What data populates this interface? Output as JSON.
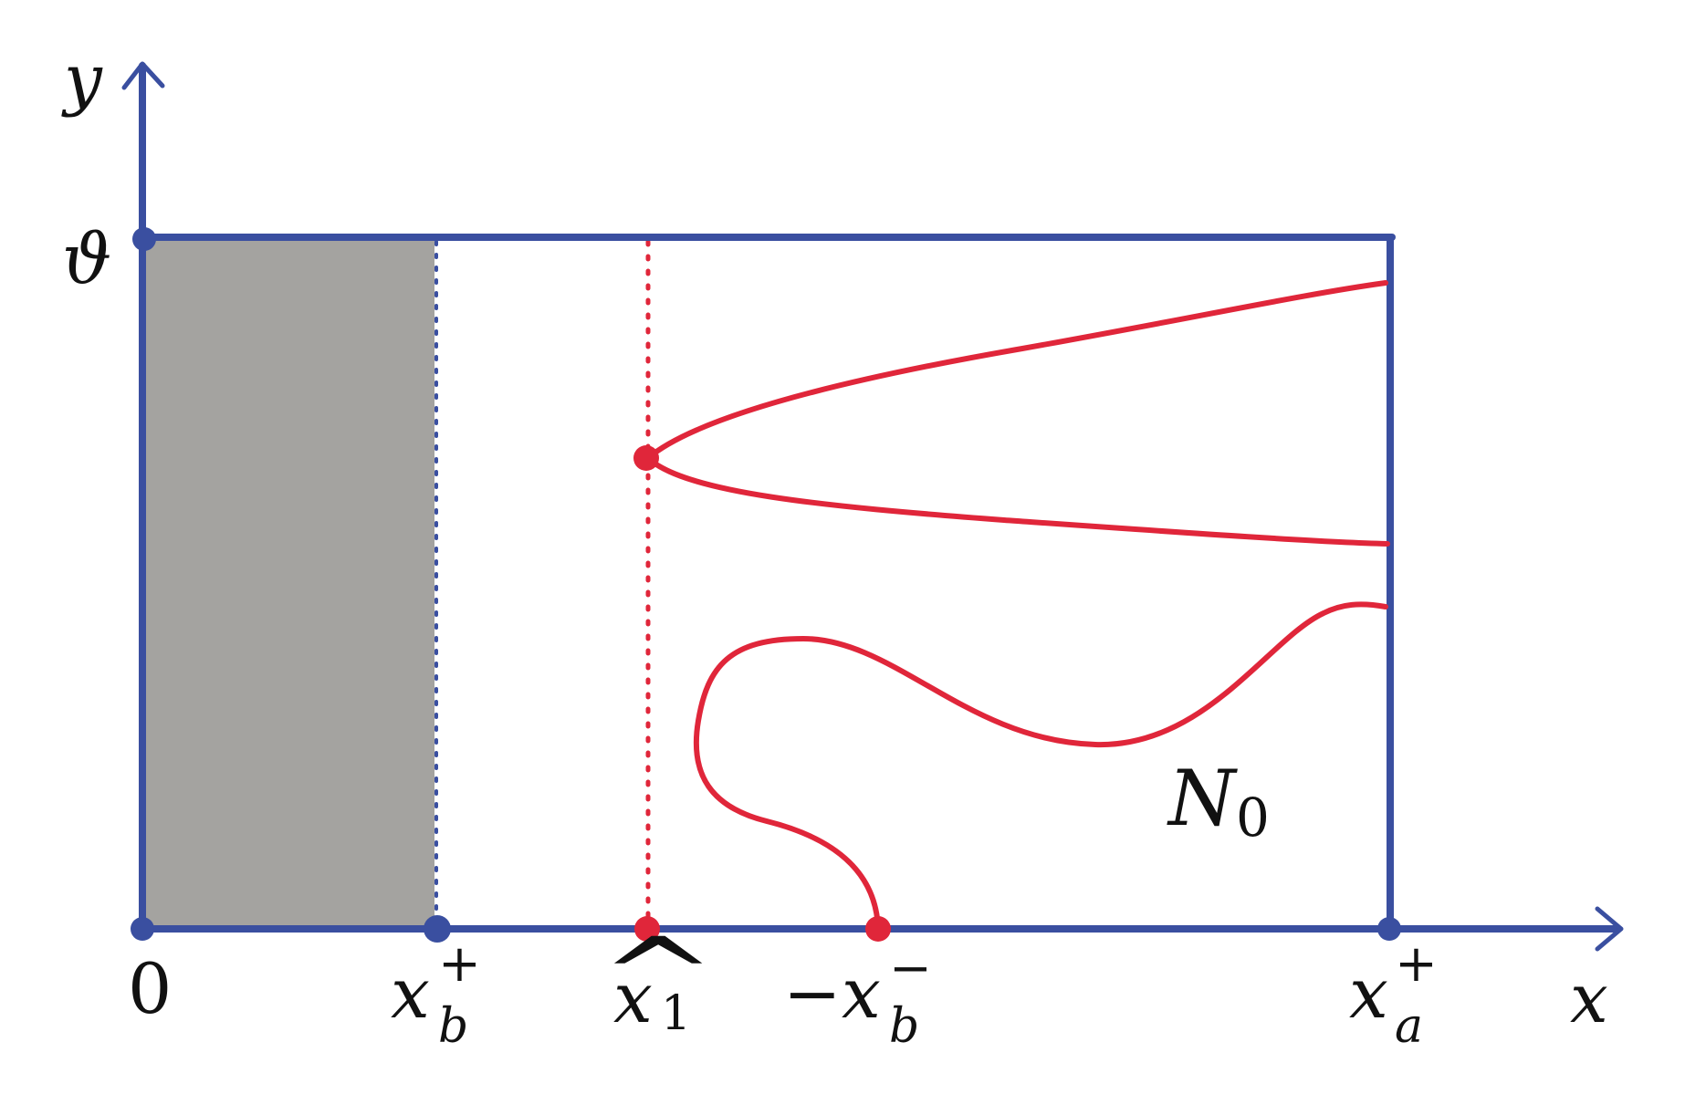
{
  "axes": {
    "x_label": "x",
    "y_label": "y",
    "origin_label": "0",
    "y_tick_label": "ϑ"
  },
  "ticks": {
    "xb_plus": {
      "base": "x",
      "sub": "b",
      "sup": "+"
    },
    "x1_hat": {
      "base": "x",
      "sub": "1",
      "hat": "^"
    },
    "neg_xb_minus": {
      "prefix": "−",
      "base": "x",
      "sub": "b",
      "sup": "−"
    },
    "xa_plus": {
      "base": "x",
      "sub": "a",
      "sup": "+"
    }
  },
  "region_label": {
    "base": "N",
    "sub": "0"
  },
  "colors": {
    "axis": "#3a4fa0",
    "curve": "#e0263a",
    "shaded": "#a4a3a0",
    "text": "#111111"
  }
}
